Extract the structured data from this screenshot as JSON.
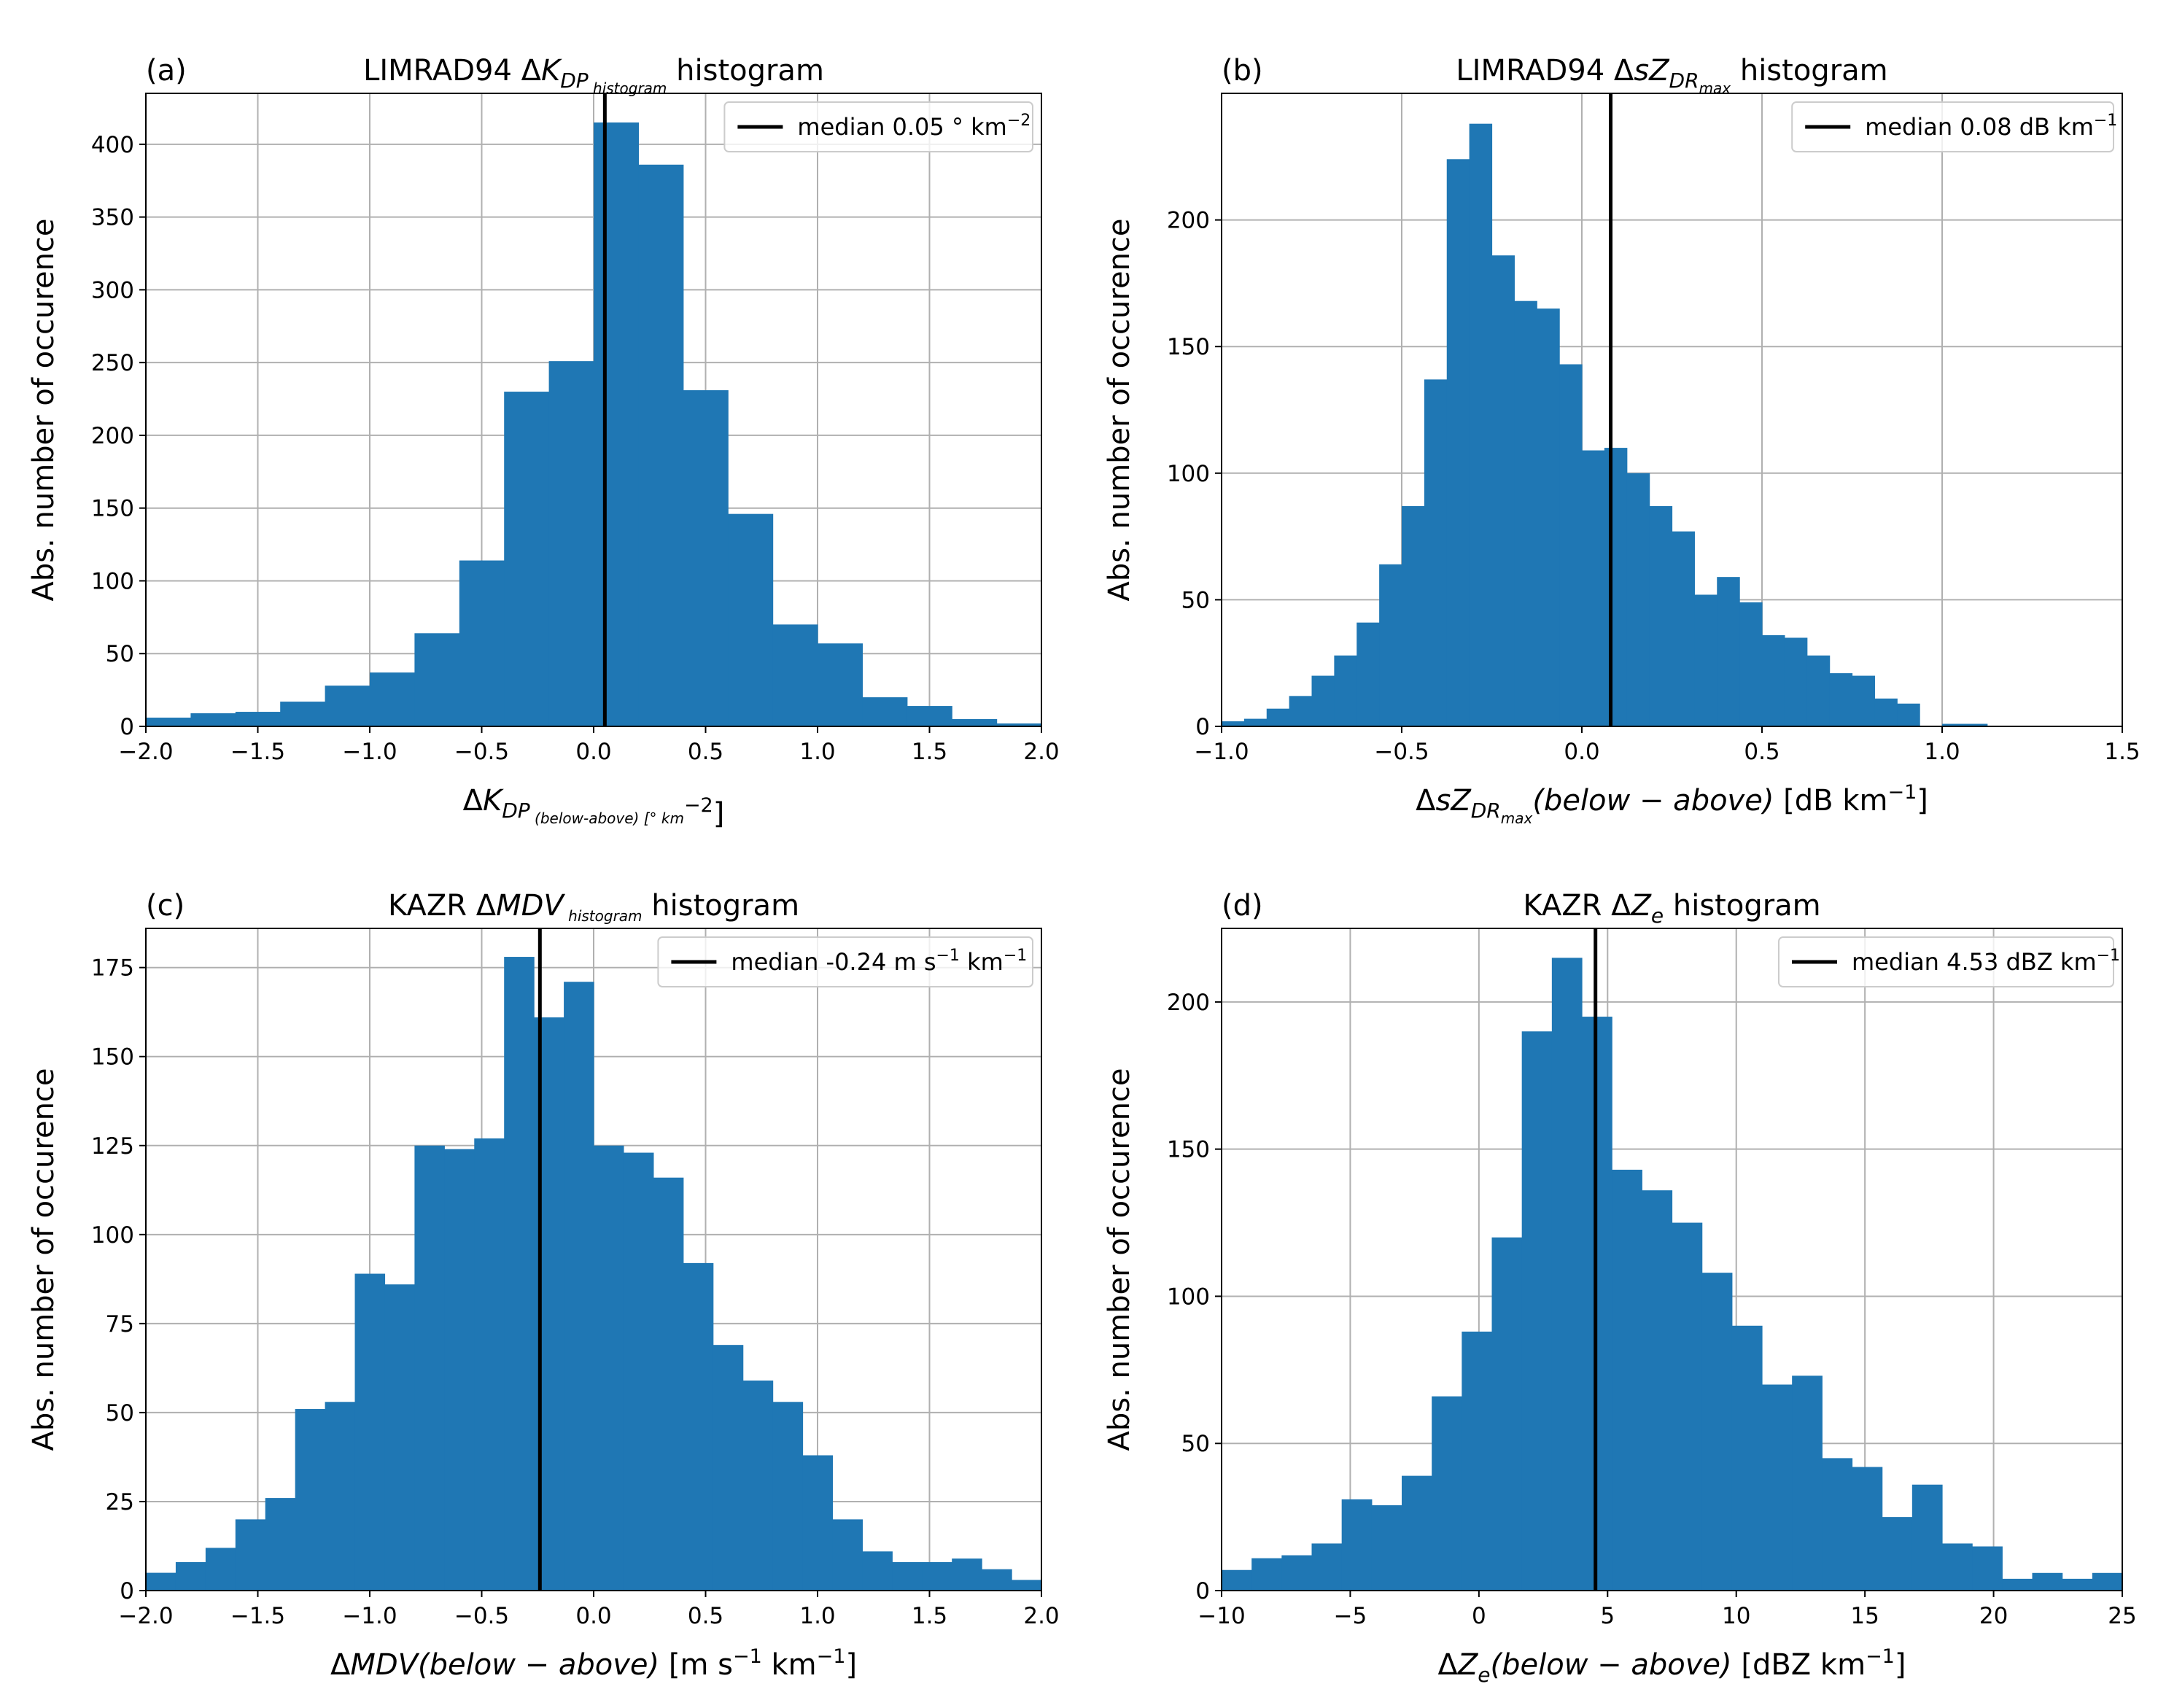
{
  "chart_data": [
    {
      "panel_label": "(a)",
      "type": "bar",
      "title": "LIMRAD94 ΔK_DP histogram",
      "title_parts": [
        "LIMRAD94 Δ",
        "K",
        "DP",
        " histogram"
      ],
      "xlabel": "ΔK_DP (below-above) [° km⁻²]",
      "xlabel_parts": [
        "Δ",
        "K",
        "DP",
        " (below-above) [° km",
        "−2",
        "]"
      ],
      "ylabel": "Abs. number of occurence",
      "xlim": [
        -2.0,
        2.0
      ],
      "ylim": [
        0,
        435
      ],
      "xticks": [
        -2.0,
        -1.5,
        -1.0,
        -0.5,
        0.0,
        0.5,
        1.0,
        1.5,
        2.0
      ],
      "xtick_labels": [
        "−2.0",
        "−1.5",
        "−1.0",
        "−0.5",
        "0.0",
        "0.5",
        "1.0",
        "1.5",
        "2.0"
      ],
      "yticks": [
        0,
        50,
        100,
        150,
        200,
        250,
        300,
        350,
        400
      ],
      "ytick_labels": [
        "0",
        "50",
        "100",
        "150",
        "200",
        "250",
        "300",
        "350",
        "400"
      ],
      "grid": true,
      "bin_edges": [
        -2.0,
        -1.8,
        -1.6,
        -1.4,
        -1.2,
        -1.0,
        -0.8,
        -0.6,
        -0.4,
        -0.2,
        0.0,
        0.2,
        0.4,
        0.6,
        0.8,
        1.0,
        1.2,
        1.4,
        1.6,
        1.8,
        2.0
      ],
      "values": [
        6,
        9,
        10,
        17,
        28,
        37,
        64,
        114,
        230,
        251,
        415,
        386,
        231,
        146,
        70,
        57,
        20,
        14,
        5,
        2
      ],
      "median": 0.05,
      "legend_label": "median 0.05 ° km⁻²",
      "legend_parts": [
        "median 0.05 ° km",
        "−2",
        ""
      ],
      "legend_position": "upper right",
      "color": "#1f77b4"
    },
    {
      "panel_label": "(b)",
      "type": "bar",
      "title": "LIMRAD94 ΔsZ_DRmax histogram",
      "title_parts": [
        "LIMRAD94 Δ",
        "sZ",
        "DR",
        "max",
        " histogram"
      ],
      "xlabel": "ΔsZ_DRmax(below − above) [dB km⁻¹]",
      "xlabel_parts": [
        "Δ",
        "sZ",
        "DR",
        "max",
        "(below − above)",
        " [dB km",
        "−1",
        "]"
      ],
      "ylabel": "Abs. number of occurence",
      "xlim": [
        -1.0,
        1.5
      ],
      "ylim": [
        0,
        250
      ],
      "xticks": [
        -1.0,
        -0.5,
        0.0,
        0.5,
        1.0,
        1.5
      ],
      "xtick_labels": [
        "−1.0",
        "−0.5",
        "0.0",
        "0.5",
        "1.0",
        "1.5"
      ],
      "yticks": [
        0,
        50,
        100,
        150,
        200
      ],
      "ytick_labels": [
        "0",
        "50",
        "100",
        "150",
        "200"
      ],
      "grid": true,
      "bin_edges": [
        -1.0,
        -0.9375,
        -0.875,
        -0.8125,
        -0.75,
        -0.6875,
        -0.625,
        -0.5625,
        -0.5,
        -0.4375,
        -0.375,
        -0.3125,
        -0.25,
        -0.1875,
        -0.125,
        -0.0625,
        0.0,
        0.0625,
        0.125,
        0.1875,
        0.25,
        0.3125,
        0.375,
        0.4375,
        0.5,
        0.5625,
        0.625,
        0.6875,
        0.75,
        0.8125,
        0.875,
        0.9375,
        1.0,
        1.0625,
        1.125,
        1.1875,
        1.25,
        1.3125,
        1.375,
        1.4375,
        1.5
      ],
      "values": [
        2,
        3,
        7,
        12,
        20,
        28,
        41,
        64,
        87,
        137,
        224,
        238,
        186,
        168,
        165,
        143,
        109,
        110,
        100,
        87,
        77,
        52,
        59,
        49,
        36,
        35,
        28,
        21,
        20,
        11,
        9,
        0,
        1,
        1,
        0,
        0,
        0,
        0,
        0,
        0
      ],
      "median": 0.08,
      "legend_label": "median 0.08 dB km⁻¹",
      "legend_parts": [
        "median 0.08 dB km",
        "−1",
        ""
      ],
      "legend_position": "upper right",
      "color": "#1f77b4"
    },
    {
      "panel_label": "(c)",
      "type": "bar",
      "title": "KAZR ΔMDV histogram",
      "title_parts": [
        "KAZR Δ",
        "MDV",
        "",
        " histogram"
      ],
      "xlabel": "ΔMDV(below − above) [m s⁻¹ km⁻¹]",
      "xlabel_parts": [
        "Δ",
        "MDV",
        "",
        "",
        "(below − above)",
        " [m s",
        "−1",
        " km",
        "−1",
        "]"
      ],
      "ylabel": "Abs. number of occurence",
      "xlim": [
        -2.0,
        2.0
      ],
      "ylim": [
        0,
        186
      ],
      "xticks": [
        -2.0,
        -1.5,
        -1.0,
        -0.5,
        0.0,
        0.5,
        1.0,
        1.5,
        2.0
      ],
      "xtick_labels": [
        "−2.0",
        "−1.5",
        "−1.0",
        "−0.5",
        "0.0",
        "0.5",
        "1.0",
        "1.5",
        "2.0"
      ],
      "yticks": [
        0,
        25,
        50,
        75,
        100,
        125,
        150,
        175
      ],
      "ytick_labels": [
        "0",
        "25",
        "50",
        "75",
        "100",
        "125",
        "150",
        "175"
      ],
      "grid": true,
      "bin_edges": [
        -2.0,
        -1.8667,
        -1.7333,
        -1.6,
        -1.4667,
        -1.3333,
        -1.2,
        -1.0667,
        -0.9333,
        -0.8,
        -0.6667,
        -0.5333,
        -0.4,
        -0.2667,
        -0.1333,
        0.0,
        0.1333,
        0.2667,
        0.4,
        0.5333,
        0.6667,
        0.8,
        0.9333,
        1.0667,
        1.2,
        1.3333,
        1.4667,
        1.6,
        1.7333,
        1.8667,
        2.0
      ],
      "values": [
        5,
        8,
        12,
        20,
        26,
        51,
        53,
        89,
        86,
        125,
        124,
        127,
        178,
        161,
        171,
        125,
        123,
        116,
        92,
        69,
        59,
        53,
        38,
        20,
        11,
        8,
        8,
        9,
        6,
        3
      ],
      "median": -0.24,
      "legend_label": "median -0.24 m s⁻¹ km⁻¹",
      "legend_parts": [
        "median -0.24 m s",
        "−1",
        " km",
        "−1",
        ""
      ],
      "legend_position": "upper right",
      "color": "#1f77b4"
    },
    {
      "panel_label": "(d)",
      "type": "bar",
      "title": "KAZR ΔZ_e histogram",
      "title_parts": [
        "KAZR Δ",
        "Z",
        "e",
        "",
        " histogram"
      ],
      "xlabel": "ΔZ_e(below − above) [dBZ km⁻¹]",
      "xlabel_parts": [
        "Δ",
        "Z",
        "e",
        "",
        "(below − above)",
        " [dBZ km",
        "−1",
        "]"
      ],
      "ylabel": "Abs. number of occurence",
      "xlim": [
        -10,
        25
      ],
      "ylim": [
        0,
        225
      ],
      "xticks": [
        -10,
        -5,
        0,
        5,
        10,
        15,
        20,
        25
      ],
      "xtick_labels": [
        "−10",
        "−5",
        "0",
        "5",
        "10",
        "15",
        "20",
        "25"
      ],
      "yticks": [
        0,
        50,
        100,
        150,
        200
      ],
      "ytick_labels": [
        "0",
        "50",
        "100",
        "150",
        "200"
      ],
      "grid": true,
      "bin_edges": [
        -10.0,
        -8.8333,
        -7.6667,
        -6.5,
        -5.3333,
        -4.1667,
        -3.0,
        -1.8333,
        -0.6667,
        0.5,
        1.6667,
        2.8333,
        4.0,
        5.1667,
        6.3333,
        7.5,
        8.6667,
        9.8333,
        11.0,
        12.1667,
        13.3333,
        14.5,
        15.6667,
        16.8333,
        18.0,
        19.1667,
        20.3333,
        21.5,
        22.6667,
        23.8333,
        25.0
      ],
      "values": [
        7,
        11,
        12,
        16,
        31,
        29,
        39,
        66,
        88,
        120,
        190,
        215,
        195,
        143,
        136,
        125,
        108,
        90,
        70,
        73,
        45,
        42,
        25,
        36,
        16,
        15,
        4,
        6,
        4,
        6
      ],
      "median": 4.53,
      "legend_label": "median 4.53 dBZ km⁻¹",
      "legend_parts": [
        "median 4.53 dBZ km",
        "−1",
        ""
      ],
      "legend_position": "upper right",
      "color": "#1f77b4"
    }
  ]
}
